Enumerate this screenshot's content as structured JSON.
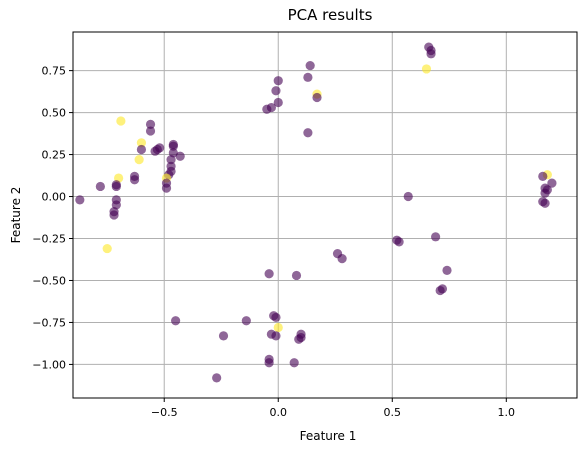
{
  "chart_data": {
    "type": "scatter",
    "title": "PCA results",
    "xlabel": "Feature 1",
    "ylabel": "Feature 2",
    "xlim": [
      -0.9,
      1.31
    ],
    "ylim": [
      -1.2,
      0.98
    ],
    "xticks": [
      -0.5,
      0.0,
      0.5,
      1.0
    ],
    "xtick_labels": [
      "−0.5",
      "0.0",
      "0.5",
      "1.0"
    ],
    "yticks": [
      0.75,
      0.5,
      0.25,
      0.0,
      -0.25,
      -0.5,
      -0.75,
      -1.0
    ],
    "ytick_labels": [
      "0.75",
      "0.50",
      "0.25",
      "0.00",
      "−0.25",
      "−0.50",
      "−0.75",
      "−1.00"
    ],
    "grid": true,
    "colors": {
      "purple": "#440154",
      "yellow": "#fde725",
      "point_alpha": 0.6,
      "grid": "#b0b0b0"
    },
    "points": [
      {
        "x": -0.69,
        "y": 0.45,
        "c": "yellow"
      },
      {
        "x": -0.56,
        "y": 0.43,
        "c": "purple"
      },
      {
        "x": -0.56,
        "y": 0.39,
        "c": "purple"
      },
      {
        "x": -0.6,
        "y": 0.32,
        "c": "yellow"
      },
      {
        "x": -0.6,
        "y": 0.28,
        "c": "purple"
      },
      {
        "x": -0.61,
        "y": 0.22,
        "c": "yellow"
      },
      {
        "x": -0.53,
        "y": 0.28,
        "c": "purple"
      },
      {
        "x": -0.52,
        "y": 0.29,
        "c": "purple"
      },
      {
        "x": -0.54,
        "y": 0.27,
        "c": "purple"
      },
      {
        "x": -0.46,
        "y": 0.31,
        "c": "purple"
      },
      {
        "x": -0.46,
        "y": 0.3,
        "c": "purple"
      },
      {
        "x": -0.46,
        "y": 0.26,
        "c": "purple"
      },
      {
        "x": -0.43,
        "y": 0.24,
        "c": "purple"
      },
      {
        "x": -0.47,
        "y": 0.22,
        "c": "purple"
      },
      {
        "x": -0.47,
        "y": 0.18,
        "c": "purple"
      },
      {
        "x": -0.47,
        "y": 0.15,
        "c": "purple"
      },
      {
        "x": -0.48,
        "y": 0.13,
        "c": "purple"
      },
      {
        "x": -0.49,
        "y": 0.11,
        "c": "yellow"
      },
      {
        "x": -0.49,
        "y": 0.08,
        "c": "purple"
      },
      {
        "x": -0.49,
        "y": 0.05,
        "c": "purple"
      },
      {
        "x": -0.63,
        "y": 0.12,
        "c": "purple"
      },
      {
        "x": -0.63,
        "y": 0.1,
        "c": "purple"
      },
      {
        "x": -0.7,
        "y": 0.11,
        "c": "yellow"
      },
      {
        "x": -0.71,
        "y": 0.07,
        "c": "purple"
      },
      {
        "x": -0.71,
        "y": 0.06,
        "c": "purple"
      },
      {
        "x": -0.78,
        "y": 0.06,
        "c": "purple"
      },
      {
        "x": -0.87,
        "y": -0.02,
        "c": "purple"
      },
      {
        "x": -0.71,
        "y": -0.02,
        "c": "purple"
      },
      {
        "x": -0.71,
        "y": -0.05,
        "c": "purple"
      },
      {
        "x": -0.72,
        "y": -0.09,
        "c": "purple"
      },
      {
        "x": -0.72,
        "y": -0.11,
        "c": "purple"
      },
      {
        "x": -0.75,
        "y": -0.31,
        "c": "yellow"
      },
      {
        "x": 0.14,
        "y": 0.78,
        "c": "purple"
      },
      {
        "x": 0.13,
        "y": 0.71,
        "c": "purple"
      },
      {
        "x": 0.0,
        "y": 0.69,
        "c": "purple"
      },
      {
        "x": -0.01,
        "y": 0.63,
        "c": "purple"
      },
      {
        "x": 0.17,
        "y": 0.61,
        "c": "yellow"
      },
      {
        "x": 0.17,
        "y": 0.59,
        "c": "purple"
      },
      {
        "x": 0.0,
        "y": 0.56,
        "c": "purple"
      },
      {
        "x": -0.03,
        "y": 0.53,
        "c": "purple"
      },
      {
        "x": -0.05,
        "y": 0.52,
        "c": "purple"
      },
      {
        "x": 0.13,
        "y": 0.38,
        "c": "purple"
      },
      {
        "x": 0.66,
        "y": 0.89,
        "c": "purple"
      },
      {
        "x": 0.67,
        "y": 0.87,
        "c": "purple"
      },
      {
        "x": 0.67,
        "y": 0.85,
        "c": "purple"
      },
      {
        "x": 0.65,
        "y": 0.76,
        "c": "yellow"
      },
      {
        "x": 1.18,
        "y": 0.13,
        "c": "yellow"
      },
      {
        "x": 1.16,
        "y": 0.12,
        "c": "purple"
      },
      {
        "x": 1.2,
        "y": 0.08,
        "c": "purple"
      },
      {
        "x": 1.17,
        "y": 0.05,
        "c": "purple"
      },
      {
        "x": 1.18,
        "y": 0.04,
        "c": "purple"
      },
      {
        "x": 1.17,
        "y": 0.02,
        "c": "purple"
      },
      {
        "x": 1.16,
        "y": -0.03,
        "c": "purple"
      },
      {
        "x": 1.17,
        "y": -0.04,
        "c": "purple"
      },
      {
        "x": 0.57,
        "y": 0.0,
        "c": "purple"
      },
      {
        "x": 0.52,
        "y": -0.26,
        "c": "purple"
      },
      {
        "x": 0.53,
        "y": -0.27,
        "c": "purple"
      },
      {
        "x": 0.69,
        "y": -0.24,
        "c": "purple"
      },
      {
        "x": 0.74,
        "y": -0.44,
        "c": "purple"
      },
      {
        "x": 0.72,
        "y": -0.55,
        "c": "purple"
      },
      {
        "x": 0.71,
        "y": -0.56,
        "c": "purple"
      },
      {
        "x": 0.26,
        "y": -0.34,
        "c": "purple"
      },
      {
        "x": 0.28,
        "y": -0.37,
        "c": "purple"
      },
      {
        "x": 0.08,
        "y": -0.47,
        "c": "purple"
      },
      {
        "x": -0.04,
        "y": -0.46,
        "c": "purple"
      },
      {
        "x": -0.45,
        "y": -0.74,
        "c": "purple"
      },
      {
        "x": -0.14,
        "y": -0.74,
        "c": "purple"
      },
      {
        "x": -0.02,
        "y": -0.71,
        "c": "purple"
      },
      {
        "x": -0.01,
        "y": -0.72,
        "c": "purple"
      },
      {
        "x": 0.0,
        "y": -0.78,
        "c": "yellow"
      },
      {
        "x": -0.03,
        "y": -0.82,
        "c": "purple"
      },
      {
        "x": -0.01,
        "y": -0.83,
        "c": "purple"
      },
      {
        "x": 0.1,
        "y": -0.82,
        "c": "purple"
      },
      {
        "x": 0.1,
        "y": -0.84,
        "c": "purple"
      },
      {
        "x": 0.09,
        "y": -0.85,
        "c": "purple"
      },
      {
        "x": -0.24,
        "y": -0.83,
        "c": "purple"
      },
      {
        "x": -0.04,
        "y": -0.97,
        "c": "purple"
      },
      {
        "x": -0.04,
        "y": -0.99,
        "c": "purple"
      },
      {
        "x": 0.07,
        "y": -0.99,
        "c": "purple"
      },
      {
        "x": -0.27,
        "y": -1.08,
        "c": "purple"
      }
    ]
  }
}
